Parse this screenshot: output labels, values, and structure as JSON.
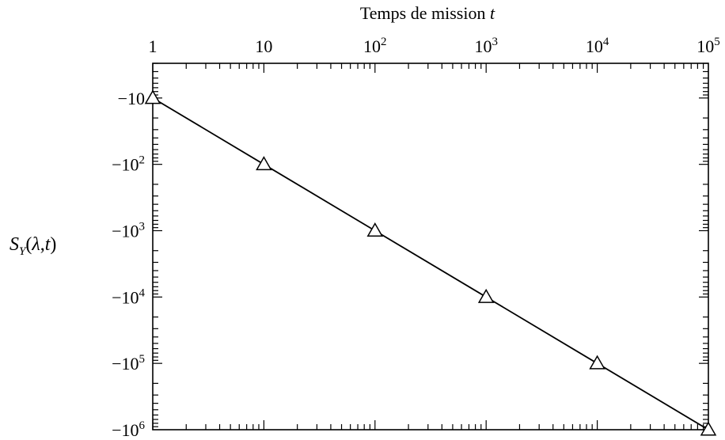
{
  "chart_data": {
    "type": "line",
    "title": "",
    "xlabel_text": "Temps de mission ",
    "xlabel_var": "t",
    "ylabel": "S_Y(λ,t)",
    "x_scale": "log",
    "y_scale": "log (negative values)",
    "x_axis_position": "top",
    "xlim": [
      1,
      100000
    ],
    "ylim": [
      -1000000,
      -3
    ],
    "x_ticks": [
      {
        "value": 1,
        "base": "1",
        "exp": ""
      },
      {
        "value": 10,
        "base": "10",
        "exp": ""
      },
      {
        "value": 100,
        "base": "10",
        "exp": "2"
      },
      {
        "value": 1000,
        "base": "10",
        "exp": "3"
      },
      {
        "value": 10000,
        "base": "10",
        "exp": "4"
      },
      {
        "value": 100000,
        "base": "10",
        "exp": "5"
      }
    ],
    "y_ticks": [
      {
        "value": -10,
        "base": "−10",
        "exp": ""
      },
      {
        "value": -100,
        "base": "−10",
        "exp": "2"
      },
      {
        "value": -1000,
        "base": "−10",
        "exp": "3"
      },
      {
        "value": -10000,
        "base": "−10",
        "exp": "4"
      },
      {
        "value": -100000,
        "base": "−10",
        "exp": "5"
      },
      {
        "value": -1000000,
        "base": "−10",
        "exp": "6"
      }
    ],
    "series": [
      {
        "marker": "triangle",
        "x": [
          1,
          10,
          100,
          1000,
          10000,
          100000
        ],
        "y": [
          -10,
          -100,
          -1000,
          -10000,
          -100000,
          -1000000
        ]
      }
    ],
    "grid": false,
    "legend": "none"
  }
}
